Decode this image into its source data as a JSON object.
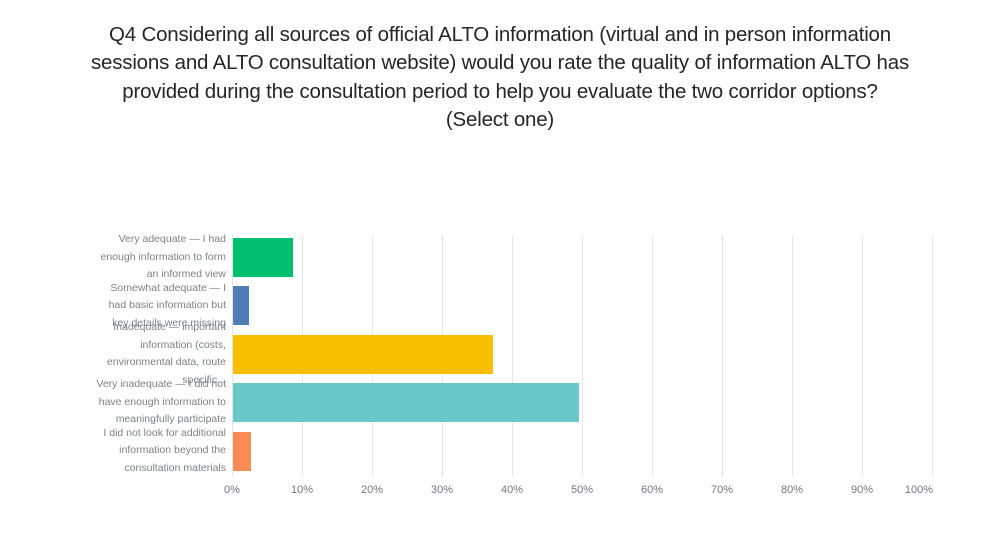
{
  "title": {
    "full": "Q4 Considering all sources of official ALTO information (virtual and in person information sessions and ALTO consultation website) would you rate the quality of information ALTO has provided during the consultation period to help you evaluate the two corridor options? (Select one)",
    "lines": [
      "Q4 Considering all sources of official ALTO information (virtual and in person information",
      "sessions and ALTO consultation website) would you rate the quality of information ALTO has",
      "provided during the consultation period to help you evaluate the two corridor options?",
      "(Select one)"
    ]
  },
  "colors": {
    "background": "#ffffff",
    "title_text": "#262626",
    "category_label_text": "#7b8288",
    "axis_label_text": "#6e7881",
    "gridline": "#e5e5e5",
    "bar_green": "#00bf6f",
    "bar_blue": "#507cb6",
    "bar_yellow": "#f8be00",
    "bar_teal": "#6bc8c8",
    "bar_orange": "#fc8a54"
  },
  "chart_data": {
    "type": "bar",
    "orientation": "horizontal",
    "title": "Q4 Considering all sources of official ALTO information (virtual and in person information sessions and ALTO consultation website) would you rate the quality of information ALTO has provided during the consultation period to help you evaluate the two corridor options? (Select one)",
    "categories": [
      "Very adequate — I had enough information to form an informed view",
      "Somewhat adequate — I had basic information but key details were missing",
      "Inadequate — important information (costs, environmental data, route specific...",
      "Very inadequate — I did not have enough information to meaningfully participate",
      "I did not look for additional information beyond the consultation materials"
    ],
    "category_label_lines": [
      [
        "Very adequate — I had",
        "enough information to form",
        "an informed view"
      ],
      [
        "Somewhat adequate — I",
        "had basic information but",
        "key details were missing"
      ],
      [
        "Inadequate — important",
        "information (costs,",
        "environmental data, route",
        "specific..."
      ],
      [
        "Very inadequate — I did not",
        "have enough information to",
        "meaningfully participate"
      ],
      [
        "I did not look for additional",
        "information beyond the",
        "consultation materials"
      ]
    ],
    "values": [
      8.6,
      2.3,
      37.1,
      49.4,
      2.6
    ],
    "unit": "%",
    "bar_colors": [
      "#00bf6f",
      "#507cb6",
      "#f8be00",
      "#6bc8c8",
      "#fc8a54"
    ],
    "xlabel": "",
    "ylabel": "",
    "xlim": [
      0,
      100
    ],
    "x_tick_step": 10,
    "x_tick_labels": [
      "0%",
      "10%",
      "20%",
      "30%",
      "40%",
      "50%",
      "60%",
      "70%",
      "80%",
      "90%",
      "100%"
    ],
    "grid": "vertical-only",
    "legend": "none"
  }
}
